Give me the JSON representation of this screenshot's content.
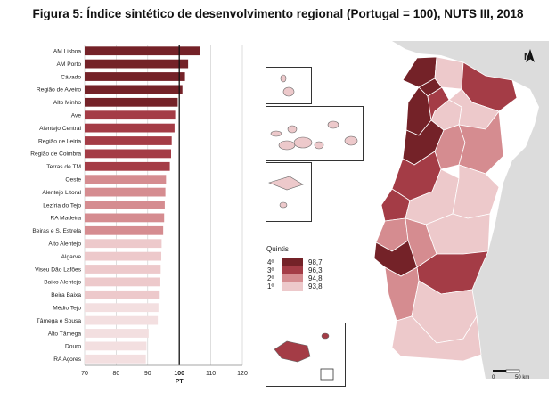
{
  "figure": {
    "title": "Figura 5: Índice sintético de desenvolvimento regional (Portugal = 100), NUTS III, 2018"
  },
  "chart_data": {
    "type": "bar",
    "orientation": "horizontal",
    "categories": [
      "AM Lisboa",
      "AM Porto",
      "Cávado",
      "Região de Aveiro",
      "Alto Minho",
      "Ave",
      "Alentejo Central",
      "Região de Leiria",
      "Região de Coimbra",
      "Terras de TM",
      "Oeste",
      "Alentejo Litoral",
      "Lezíria do Tejo",
      "RA Madeira",
      "Beiras e S. Estrela",
      "Alto Alentejo",
      "Algarve",
      "Viseu Dão Lafões",
      "Baixo Alentejo",
      "Beira Baixa",
      "Médio Tejo",
      "Tâmega e Sousa",
      "Alto Tâmega",
      "Douro",
      "RA Açores"
    ],
    "values": [
      106.5,
      102.8,
      101.8,
      101.0,
      99.5,
      98.7,
      98.5,
      97.6,
      97.4,
      97.0,
      95.8,
      95.6,
      95.4,
      95.2,
      94.9,
      94.4,
      94.3,
      94.1,
      94.0,
      93.8,
      93.4,
      93.2,
      90.3,
      89.6,
      89.4
    ],
    "bar_colors": [
      "#742228",
      "#742228",
      "#742228",
      "#742228",
      "#742228",
      "#a43c46",
      "#a43c46",
      "#a43c46",
      "#a43c46",
      "#a43c46",
      "#d58c90",
      "#d58c90",
      "#d58c90",
      "#d58c90",
      "#d58c90",
      "#edc9cb",
      "#edc9cb",
      "#edc9cb",
      "#edc9cb",
      "#edc9cb",
      "#f3dfe0",
      "#f3dfe0",
      "#f3dfe0",
      "#f3dfe0",
      "#f3dfe0"
    ],
    "xlim": [
      70,
      120
    ],
    "x_ticks": [
      70,
      80,
      90,
      100,
      110,
      120
    ],
    "reference_value": 100,
    "xlabel": "PT",
    "grid": true
  },
  "map": {
    "legend": {
      "title": "Quintis",
      "items": [
        {
          "rank": "4º",
          "value": "98,7",
          "color": "#742228"
        },
        {
          "rank": "3º",
          "value": "96,3",
          "color": "#a43c46"
        },
        {
          "rank": "2º",
          "value": "94,8",
          "color": "#d58c90"
        },
        {
          "rank": "1º",
          "value": "93,8",
          "color": "#edc9cb"
        }
      ]
    },
    "scale_bar": {
      "start": "0",
      "end": "50 km"
    },
    "north_arrow": "N",
    "colors": {
      "spain": "#dcdcdc",
      "sea": "#ffffff",
      "border": "#ffffff"
    }
  }
}
